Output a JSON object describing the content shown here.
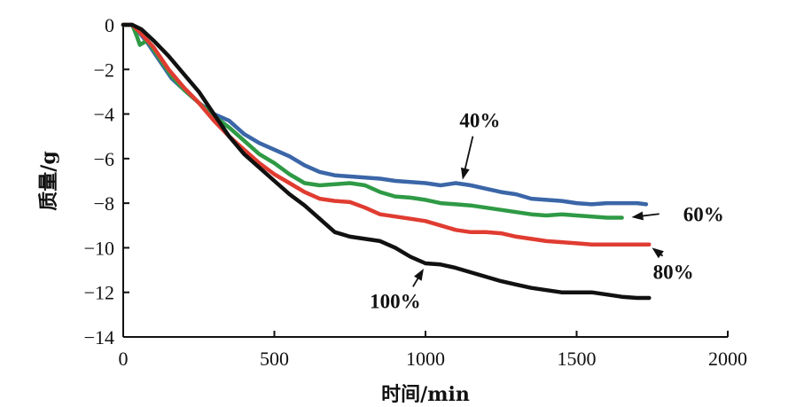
{
  "chart_data": {
    "type": "line",
    "title": "",
    "xlabel": "时间/min",
    "ylabel": "质量/g",
    "xlim": [
      0,
      2000
    ],
    "ylim": [
      -14,
      0
    ],
    "xticks": [
      0,
      500,
      1000,
      1500,
      2000
    ],
    "yticks": [
      0,
      -2,
      -4,
      -6,
      -8,
      -10,
      -12,
      -14
    ],
    "grid": false,
    "series": [
      {
        "name": "40%",
        "color": "#3b66a8",
        "x": [
          0,
          30,
          50,
          80,
          120,
          160,
          200,
          250,
          300,
          350,
          400,
          450,
          500,
          550,
          600,
          650,
          700,
          750,
          800,
          850,
          900,
          950,
          1000,
          1050,
          1100,
          1150,
          1200,
          1250,
          1300,
          1350,
          1400,
          1450,
          1500,
          1550,
          1600,
          1650,
          1700,
          1730
        ],
        "y": [
          0,
          0,
          -0.3,
          -0.8,
          -1.6,
          -2.4,
          -2.9,
          -3.5,
          -4.0,
          -4.3,
          -4.9,
          -5.3,
          -5.6,
          -5.9,
          -6.3,
          -6.6,
          -6.75,
          -6.8,
          -6.85,
          -6.9,
          -7.0,
          -7.05,
          -7.1,
          -7.2,
          -7.1,
          -7.2,
          -7.35,
          -7.5,
          -7.6,
          -7.8,
          -7.85,
          -7.9,
          -8.0,
          -8.05,
          -8.0,
          -8.0,
          -8.0,
          -8.05
        ]
      },
      {
        "name": "60%",
        "color": "#2f9a45",
        "x": [
          0,
          30,
          45,
          55,
          80,
          120,
          160,
          200,
          250,
          300,
          350,
          400,
          450,
          500,
          550,
          600,
          650,
          700,
          750,
          800,
          850,
          900,
          950,
          1000,
          1050,
          1100,
          1150,
          1200,
          1250,
          1300,
          1350,
          1400,
          1450,
          1500,
          1550,
          1600,
          1650
        ],
        "y": [
          0,
          0,
          -0.5,
          -0.9,
          -0.7,
          -1.5,
          -2.3,
          -2.9,
          -3.5,
          -4.1,
          -4.6,
          -5.2,
          -5.8,
          -6.2,
          -6.7,
          -7.1,
          -7.2,
          -7.15,
          -7.1,
          -7.2,
          -7.5,
          -7.7,
          -7.75,
          -7.85,
          -8.0,
          -8.05,
          -8.1,
          -8.2,
          -8.3,
          -8.4,
          -8.5,
          -8.55,
          -8.5,
          -8.55,
          -8.6,
          -8.65,
          -8.65
        ]
      },
      {
        "name": "80%",
        "color": "#e03c31",
        "x": [
          0,
          30,
          60,
          100,
          150,
          200,
          250,
          300,
          350,
          400,
          450,
          500,
          550,
          600,
          650,
          700,
          750,
          800,
          850,
          900,
          950,
          1000,
          1050,
          1100,
          1150,
          1200,
          1250,
          1300,
          1350,
          1400,
          1450,
          1500,
          1550,
          1600,
          1650,
          1700,
          1740
        ],
        "y": [
          0,
          0,
          -0.4,
          -1.0,
          -2.0,
          -2.8,
          -3.5,
          -4.3,
          -5.0,
          -5.6,
          -6.2,
          -6.7,
          -7.1,
          -7.5,
          -7.8,
          -7.9,
          -7.95,
          -8.2,
          -8.5,
          -8.6,
          -8.7,
          -8.8,
          -9.0,
          -9.2,
          -9.3,
          -9.3,
          -9.35,
          -9.5,
          -9.6,
          -9.7,
          -9.75,
          -9.8,
          -9.85,
          -9.85,
          -9.85,
          -9.85,
          -9.85
        ]
      },
      {
        "name": "100%",
        "color": "#111111",
        "x": [
          0,
          30,
          60,
          100,
          150,
          200,
          250,
          300,
          350,
          400,
          450,
          500,
          550,
          600,
          650,
          700,
          750,
          800,
          850,
          900,
          950,
          1000,
          1050,
          1100,
          1150,
          1200,
          1250,
          1300,
          1350,
          1400,
          1450,
          1500,
          1550,
          1600,
          1650,
          1700,
          1740
        ],
        "y": [
          0,
          0,
          -0.2,
          -0.7,
          -1.4,
          -2.2,
          -3.0,
          -4.0,
          -5.0,
          -5.8,
          -6.4,
          -7.0,
          -7.6,
          -8.1,
          -8.7,
          -9.3,
          -9.5,
          -9.6,
          -9.7,
          -10.0,
          -10.4,
          -10.7,
          -10.75,
          -10.9,
          -11.1,
          -11.3,
          -11.5,
          -11.65,
          -11.8,
          -11.9,
          -12.0,
          -12.0,
          -12.0,
          -12.1,
          -12.2,
          -12.25,
          -12.25
        ]
      }
    ],
    "annotations": [
      {
        "text": "40%",
        "x": 1120,
        "y": -7.1,
        "label_x": 1180,
        "label_y": -4.6
      },
      {
        "text": "60%",
        "x": 1670,
        "y": -8.65,
        "label_x": 1920,
        "label_y": -8.8
      },
      {
        "text": "80%",
        "x": 1740,
        "y": -9.9,
        "label_x": 1820,
        "label_y": -11.4
      },
      {
        "text": "100%",
        "x": 1000,
        "y": -10.8,
        "label_x": 900,
        "label_y": -12.7
      }
    ]
  }
}
